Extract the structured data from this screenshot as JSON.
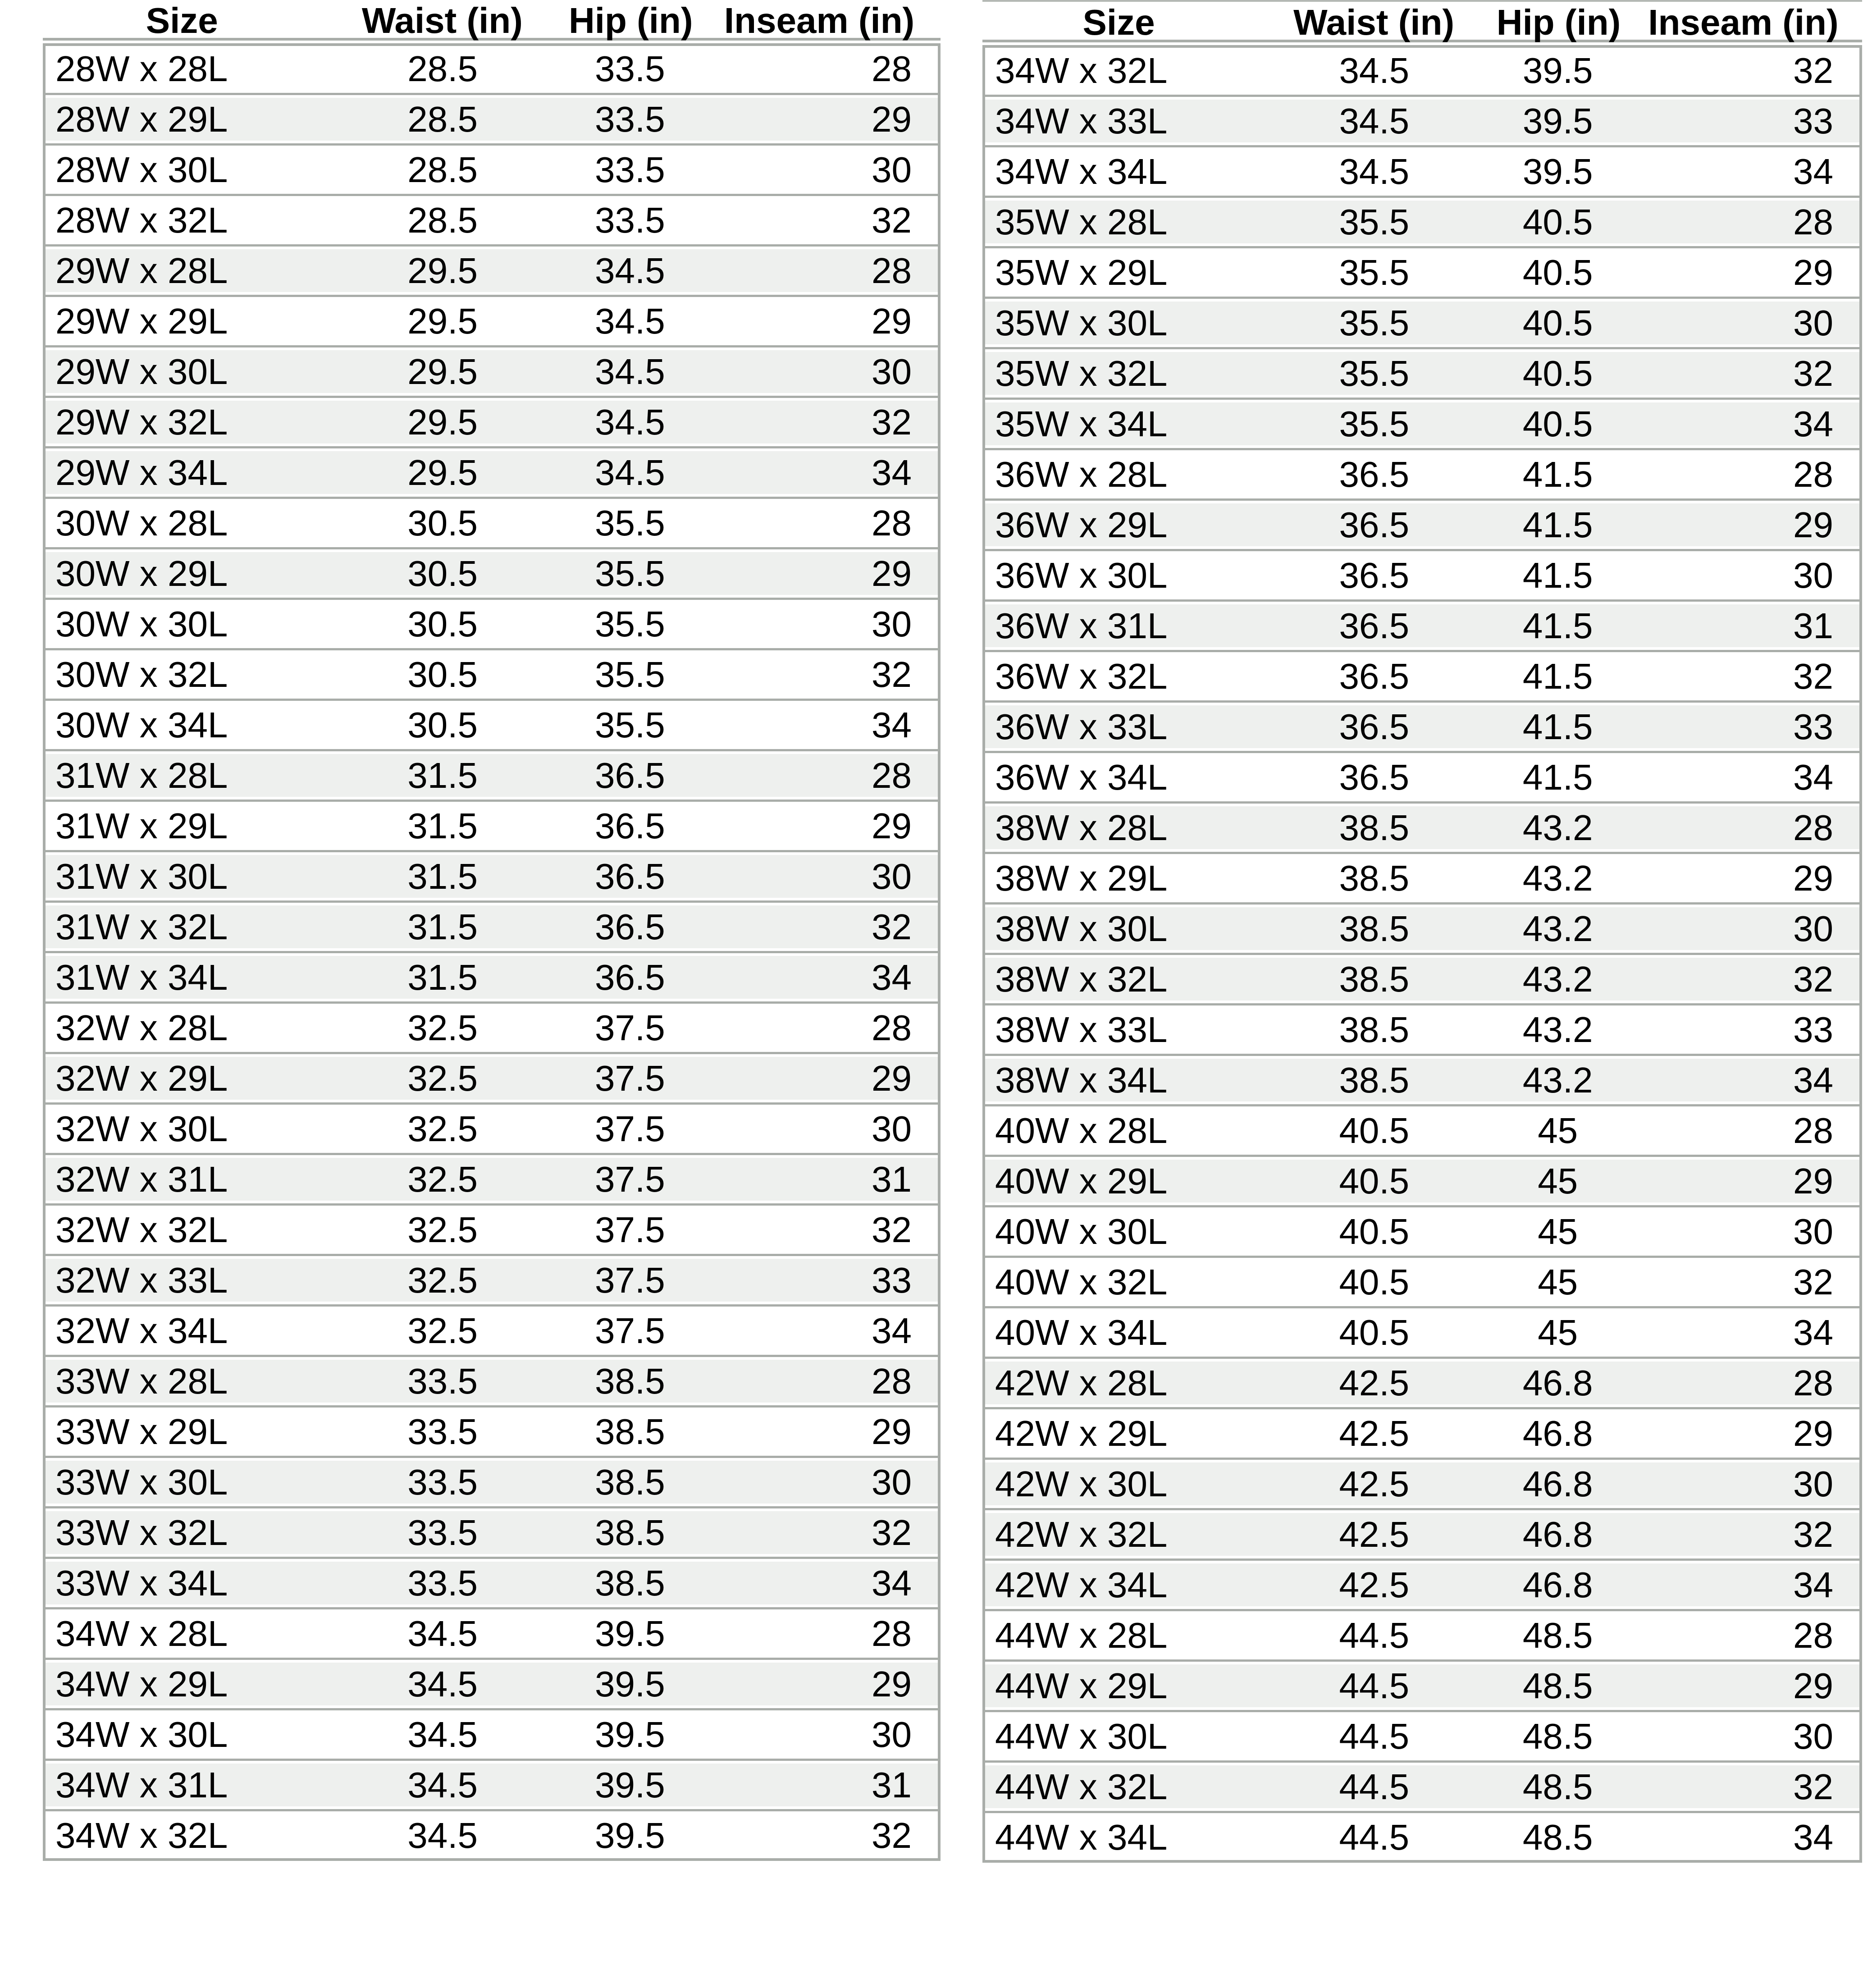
{
  "colors": {
    "row_stripe": "#eef0ee",
    "row_white": "#ffffff",
    "grid_border": "#a9ada9",
    "header_topline": "#b4b8b4",
    "text": "#000000",
    "page_bg": "#ffffff"
  },
  "chart_data": [
    {
      "type": "table",
      "position": "left",
      "columns": [
        "Size",
        "Waist (in)",
        "Hip (in)",
        "Inseam (in)"
      ],
      "rows": [
        {
          "size": "28W x 28L",
          "waist": "28.5",
          "hip": "33.5",
          "inseam": "28",
          "shaded": false
        },
        {
          "size": "28W x 29L",
          "waist": "28.5",
          "hip": "33.5",
          "inseam": "29",
          "shaded": true
        },
        {
          "size": "28W x 30L",
          "waist": "28.5",
          "hip": "33.5",
          "inseam": "30",
          "shaded": false
        },
        {
          "size": "28W x 32L",
          "waist": "28.5",
          "hip": "33.5",
          "inseam": "32",
          "shaded": false
        },
        {
          "size": "29W x 28L",
          "waist": "29.5",
          "hip": "34.5",
          "inseam": "28",
          "shaded": true
        },
        {
          "size": "29W x 29L",
          "waist": "29.5",
          "hip": "34.5",
          "inseam": "29",
          "shaded": false
        },
        {
          "size": "29W x 30L",
          "waist": "29.5",
          "hip": "34.5",
          "inseam": "30",
          "shaded": true
        },
        {
          "size": "29W x 32L",
          "waist": "29.5",
          "hip": "34.5",
          "inseam": "32",
          "shaded": true
        },
        {
          "size": "29W x 34L",
          "waist": "29.5",
          "hip": "34.5",
          "inseam": "34",
          "shaded": true
        },
        {
          "size": "30W x 28L",
          "waist": "30.5",
          "hip": "35.5",
          "inseam": "28",
          "shaded": false
        },
        {
          "size": "30W x 29L",
          "waist": "30.5",
          "hip": "35.5",
          "inseam": "29",
          "shaded": true
        },
        {
          "size": "30W x 30L",
          "waist": "30.5",
          "hip": "35.5",
          "inseam": "30",
          "shaded": false
        },
        {
          "size": "30W x 32L",
          "waist": "30.5",
          "hip": "35.5",
          "inseam": "32",
          "shaded": false
        },
        {
          "size": "30W x 34L",
          "waist": "30.5",
          "hip": "35.5",
          "inseam": "34",
          "shaded": false
        },
        {
          "size": "31W x 28L",
          "waist": "31.5",
          "hip": "36.5",
          "inseam": "28",
          "shaded": true
        },
        {
          "size": "31W x 29L",
          "waist": "31.5",
          "hip": "36.5",
          "inseam": "29",
          "shaded": false
        },
        {
          "size": "31W x 30L",
          "waist": "31.5",
          "hip": "36.5",
          "inseam": "30",
          "shaded": true
        },
        {
          "size": "31W x 32L",
          "waist": "31.5",
          "hip": "36.5",
          "inseam": "32",
          "shaded": true
        },
        {
          "size": "31W x 34L",
          "waist": "31.5",
          "hip": "36.5",
          "inseam": "34",
          "shaded": true
        },
        {
          "size": "32W x 28L",
          "waist": "32.5",
          "hip": "37.5",
          "inseam": "28",
          "shaded": false
        },
        {
          "size": "32W x 29L",
          "waist": "32.5",
          "hip": "37.5",
          "inseam": "29",
          "shaded": true
        },
        {
          "size": "32W x 30L",
          "waist": "32.5",
          "hip": "37.5",
          "inseam": "30",
          "shaded": false
        },
        {
          "size": "32W x 31L",
          "waist": "32.5",
          "hip": "37.5",
          "inseam": "31",
          "shaded": true
        },
        {
          "size": "32W x 32L",
          "waist": "32.5",
          "hip": "37.5",
          "inseam": "32",
          "shaded": false
        },
        {
          "size": "32W x 33L",
          "waist": "32.5",
          "hip": "37.5",
          "inseam": "33",
          "shaded": true
        },
        {
          "size": "32W x 34L",
          "waist": "32.5",
          "hip": "37.5",
          "inseam": "34",
          "shaded": false
        },
        {
          "size": "33W x 28L",
          "waist": "33.5",
          "hip": "38.5",
          "inseam": "28",
          "shaded": true
        },
        {
          "size": "33W x 29L",
          "waist": "33.5",
          "hip": "38.5",
          "inseam": "29",
          "shaded": false
        },
        {
          "size": "33W x 30L",
          "waist": "33.5",
          "hip": "38.5",
          "inseam": "30",
          "shaded": true
        },
        {
          "size": "33W x 32L",
          "waist": "33.5",
          "hip": "38.5",
          "inseam": "32",
          "shaded": true
        },
        {
          "size": "33W x 34L",
          "waist": "33.5",
          "hip": "38.5",
          "inseam": "34",
          "shaded": true
        },
        {
          "size": "34W x 28L",
          "waist": "34.5",
          "hip": "39.5",
          "inseam": "28",
          "shaded": false
        },
        {
          "size": "34W x 29L",
          "waist": "34.5",
          "hip": "39.5",
          "inseam": "29",
          "shaded": true
        },
        {
          "size": "34W x 30L",
          "waist": "34.5",
          "hip": "39.5",
          "inseam": "30",
          "shaded": false
        },
        {
          "size": "34W x 31L",
          "waist": "34.5",
          "hip": "39.5",
          "inseam": "31",
          "shaded": true
        },
        {
          "size": "34W x 32L",
          "waist": "34.5",
          "hip": "39.5",
          "inseam": "32",
          "shaded": false
        }
      ]
    },
    {
      "type": "table",
      "position": "right",
      "columns": [
        "Size",
        "Waist (in)",
        "Hip (in)",
        "Inseam (in)"
      ],
      "rows": [
        {
          "size": "34W x 32L",
          "waist": "34.5",
          "hip": "39.5",
          "inseam": "32",
          "shaded": false
        },
        {
          "size": "34W x 33L",
          "waist": "34.5",
          "hip": "39.5",
          "inseam": "33",
          "shaded": true
        },
        {
          "size": "34W x 34L",
          "waist": "34.5",
          "hip": "39.5",
          "inseam": "34",
          "shaded": false
        },
        {
          "size": "35W x 28L",
          "waist": "35.5",
          "hip": "40.5",
          "inseam": "28",
          "shaded": true
        },
        {
          "size": "35W x 29L",
          "waist": "35.5",
          "hip": "40.5",
          "inseam": "29",
          "shaded": false
        },
        {
          "size": "35W x 30L",
          "waist": "35.5",
          "hip": "40.5",
          "inseam": "30",
          "shaded": true
        },
        {
          "size": "35W x 32L",
          "waist": "35.5",
          "hip": "40.5",
          "inseam": "32",
          "shaded": true
        },
        {
          "size": "35W x 34L",
          "waist": "35.5",
          "hip": "40.5",
          "inseam": "34",
          "shaded": true
        },
        {
          "size": "36W x 28L",
          "waist": "36.5",
          "hip": "41.5",
          "inseam": "28",
          "shaded": false
        },
        {
          "size": "36W x 29L",
          "waist": "36.5",
          "hip": "41.5",
          "inseam": "29",
          "shaded": true
        },
        {
          "size": "36W x 30L",
          "waist": "36.5",
          "hip": "41.5",
          "inseam": "30",
          "shaded": false
        },
        {
          "size": "36W x 31L",
          "waist": "36.5",
          "hip": "41.5",
          "inseam": "31",
          "shaded": true
        },
        {
          "size": "36W x 32L",
          "waist": "36.5",
          "hip": "41.5",
          "inseam": "32",
          "shaded": false
        },
        {
          "size": "36W x 33L",
          "waist": "36.5",
          "hip": "41.5",
          "inseam": "33",
          "shaded": true
        },
        {
          "size": "36W x 34L",
          "waist": "36.5",
          "hip": "41.5",
          "inseam": "34",
          "shaded": false
        },
        {
          "size": "38W x 28L",
          "waist": "38.5",
          "hip": "43.2",
          "inseam": "28",
          "shaded": true
        },
        {
          "size": "38W x 29L",
          "waist": "38.5",
          "hip": "43.2",
          "inseam": "29",
          "shaded": false
        },
        {
          "size": "38W x 30L",
          "waist": "38.5",
          "hip": "43.2",
          "inseam": "30",
          "shaded": true
        },
        {
          "size": "38W x 32L",
          "waist": "38.5",
          "hip": "43.2",
          "inseam": "32",
          "shaded": true
        },
        {
          "size": "38W x 33L",
          "waist": "38.5",
          "hip": "43.2",
          "inseam": "33",
          "shaded": false
        },
        {
          "size": "38W x 34L",
          "waist": "38.5",
          "hip": "43.2",
          "inseam": "34",
          "shaded": true
        },
        {
          "size": "40W x 28L",
          "waist": "40.5",
          "hip": "45",
          "inseam": "28",
          "shaded": false
        },
        {
          "size": "40W x 29L",
          "waist": "40.5",
          "hip": "45",
          "inseam": "29",
          "shaded": true
        },
        {
          "size": "40W x 30L",
          "waist": "40.5",
          "hip": "45",
          "inseam": "30",
          "shaded": false
        },
        {
          "size": "40W x 32L",
          "waist": "40.5",
          "hip": "45",
          "inseam": "32",
          "shaded": false
        },
        {
          "size": "40W x 34L",
          "waist": "40.5",
          "hip": "45",
          "inseam": "34",
          "shaded": false
        },
        {
          "size": "42W x 28L",
          "waist": "42.5",
          "hip": "46.8",
          "inseam": "28",
          "shaded": true
        },
        {
          "size": "42W x 29L",
          "waist": "42.5",
          "hip": "46.8",
          "inseam": "29",
          "shaded": false
        },
        {
          "size": "42W x 30L",
          "waist": "42.5",
          "hip": "46.8",
          "inseam": "30",
          "shaded": true
        },
        {
          "size": "42W x 32L",
          "waist": "42.5",
          "hip": "46.8",
          "inseam": "32",
          "shaded": true
        },
        {
          "size": "42W x 34L",
          "waist": "42.5",
          "hip": "46.8",
          "inseam": "34",
          "shaded": true
        },
        {
          "size": "44W x 28L",
          "waist": "44.5",
          "hip": "48.5",
          "inseam": "28",
          "shaded": false
        },
        {
          "size": "44W x 29L",
          "waist": "44.5",
          "hip": "48.5",
          "inseam": "29",
          "shaded": true
        },
        {
          "size": "44W x 30L",
          "waist": "44.5",
          "hip": "48.5",
          "inseam": "30",
          "shaded": false
        },
        {
          "size": "44W x 32L",
          "waist": "44.5",
          "hip": "48.5",
          "inseam": "32",
          "shaded": true
        },
        {
          "size": "44W x 34L",
          "waist": "44.5",
          "hip": "48.5",
          "inseam": "34",
          "shaded": false
        }
      ]
    }
  ]
}
